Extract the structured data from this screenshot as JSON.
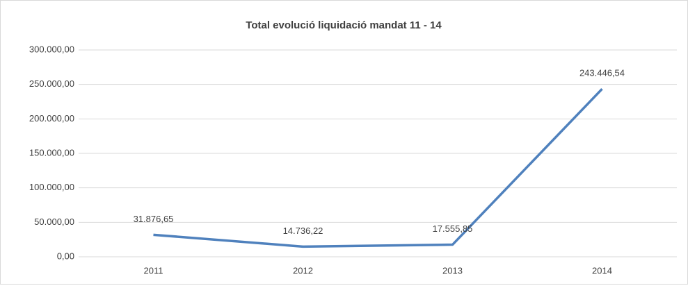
{
  "chart_data": {
    "type": "line",
    "title": "Total evolució liquidació mandat 11 - 14",
    "categories": [
      "2011",
      "2012",
      "2013",
      "2014"
    ],
    "series": [
      {
        "color": "#4f81bd",
        "values": [
          31876.65,
          14736.22,
          17555.85,
          243446.54
        ],
        "value_labels": [
          "31.876,65",
          "14.736,22",
          "17.555,85",
          "243.446,54"
        ]
      }
    ],
    "ylim": [
      0,
      300000
    ],
    "yticks": [
      {
        "value": 0,
        "label": "0,00"
      },
      {
        "value": 50000,
        "label": "50.000,00"
      },
      {
        "value": 100000,
        "label": "100.000,00"
      },
      {
        "value": 150000,
        "label": "150.000,00"
      },
      {
        "value": 200000,
        "label": "200.000,00"
      },
      {
        "value": 250000,
        "label": "250.000,00"
      },
      {
        "value": 300000,
        "label": "300.000,00"
      }
    ],
    "grid": true
  }
}
